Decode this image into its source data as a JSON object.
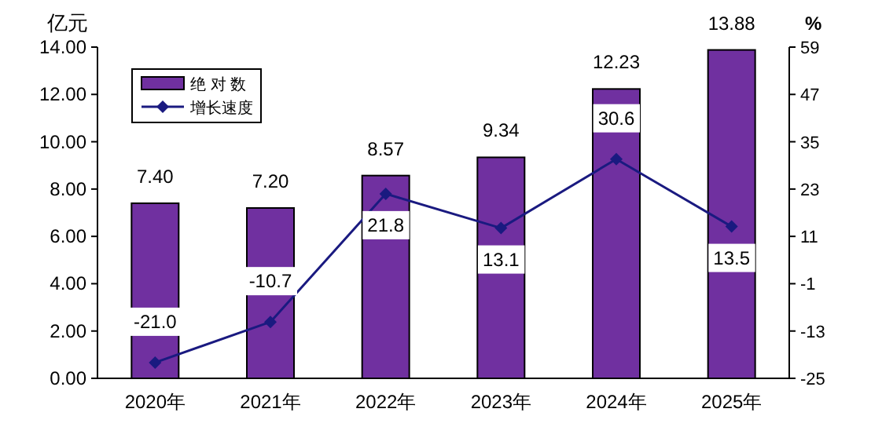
{
  "chart_data": {
    "type": "bar",
    "ylabel": "亿元",
    "y2label": "%",
    "categories": [
      "2020年",
      "2021年",
      "2022年",
      "2023年",
      "2024年",
      "2025年"
    ],
    "series": [
      {
        "name": "绝 对 数",
        "color": "#7030a0",
        "values": [
          7.4,
          7.2,
          8.57,
          9.34,
          12.23,
          13.88
        ],
        "value_labels": [
          "7.40",
          "7.20",
          "8.57",
          "9.34",
          "12.23",
          "13.88"
        ]
      },
      {
        "name": "增长速度",
        "type": "line",
        "axis": "y2",
        "color": "#1a1a80",
        "marker": "diamond",
        "values": [
          -21.0,
          -10.7,
          21.8,
          13.1,
          30.6,
          13.5
        ],
        "value_labels": [
          "-21.0",
          "-10.7",
          "21.8",
          "13.1",
          "30.6",
          "13.5"
        ]
      }
    ],
    "ylim": [
      0,
      14
    ],
    "yticks": [
      {
        "value": 0,
        "label": "0.00"
      },
      {
        "value": 2,
        "label": "2.00"
      },
      {
        "value": 4,
        "label": "4.00"
      },
      {
        "value": 6,
        "label": "6.00"
      },
      {
        "value": 8,
        "label": "8.00"
      },
      {
        "value": 10,
        "label": "10.00"
      },
      {
        "value": 12,
        "label": "12.00"
      },
      {
        "value": 14,
        "label": "14.00"
      }
    ],
    "y2lim": [
      -25,
      59
    ],
    "y2ticks": [
      -25,
      -13,
      -1,
      11,
      23,
      35,
      47,
      59
    ],
    "legend": "top left",
    "grid": false
  }
}
